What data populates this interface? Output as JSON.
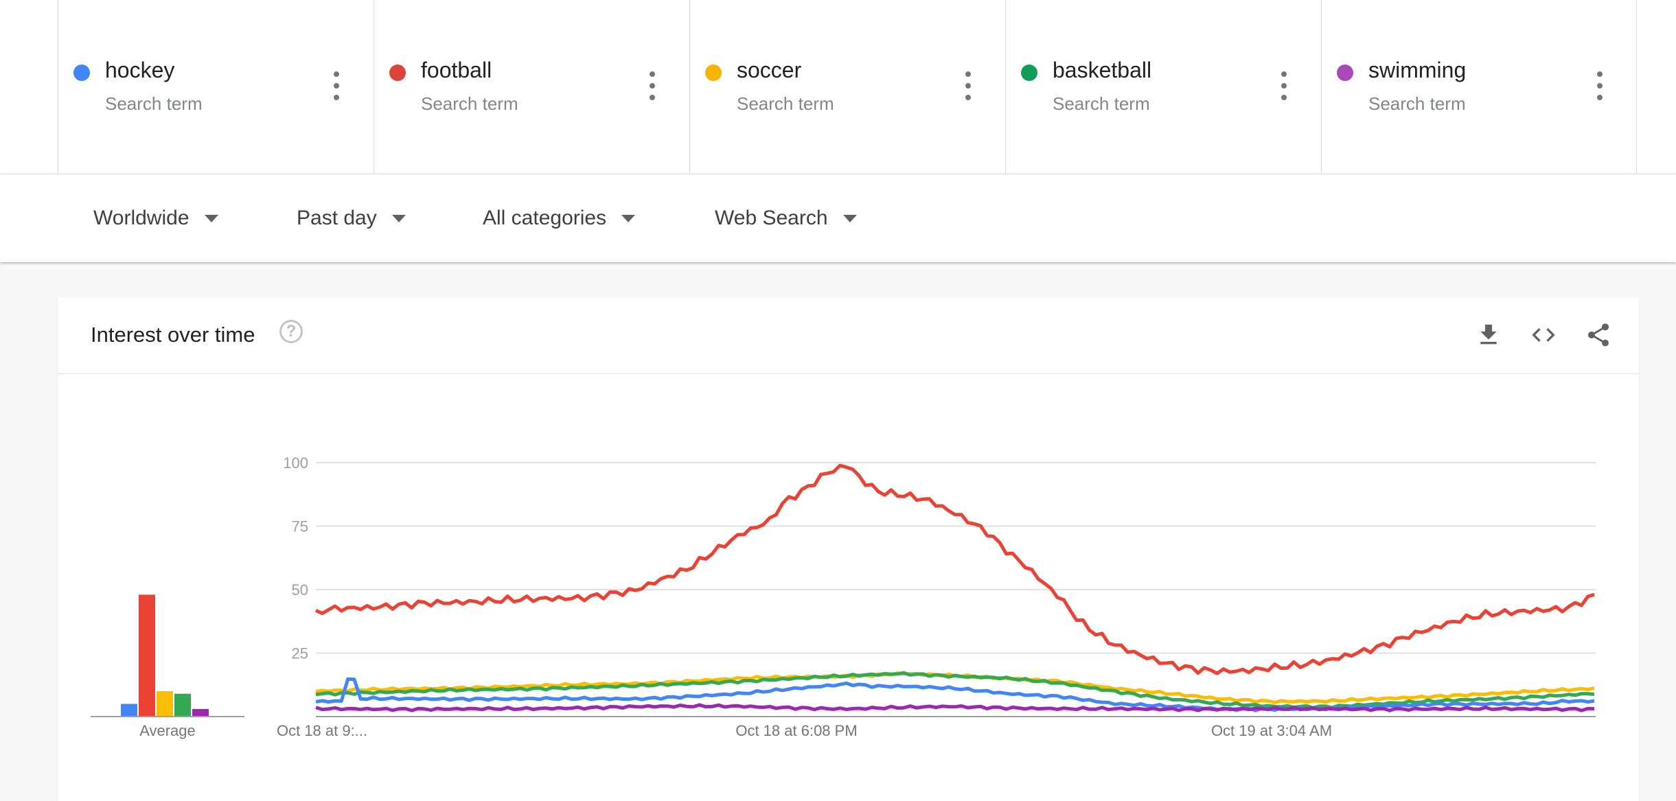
{
  "terms": [
    {
      "name": "hockey",
      "sub": "Search term",
      "color": "#4285f4"
    },
    {
      "name": "football",
      "sub": "Search term",
      "color": "#db4437"
    },
    {
      "name": "soccer",
      "sub": "Search term",
      "color": "#f4b400"
    },
    {
      "name": "basketball",
      "sub": "Search term",
      "color": "#0f9d58"
    },
    {
      "name": "swimming",
      "sub": "Search term",
      "color": "#ab47bc"
    }
  ],
  "filters": {
    "region": "Worldwide",
    "time": "Past day",
    "category": "All categories",
    "search_type": "Web Search"
  },
  "card": {
    "title": "Interest over time",
    "help_icon": "help-circle-icon",
    "actions": [
      "download-icon",
      "embed-code-icon",
      "share-icon"
    ]
  },
  "chart_data": {
    "type": "line",
    "ylim": [
      0,
      100
    ],
    "yticks": [
      25,
      50,
      75,
      100
    ],
    "xtick_labels": [
      "Oct 18 at 9:...",
      "Oct 18 at 6:08 PM",
      "Oct 19 at 3:04 AM"
    ],
    "average_label": "Average",
    "averages": {
      "hockey": 5,
      "football": 48,
      "soccer": 10,
      "basketball": 9,
      "swimming": 3
    },
    "points_count": 200,
    "series": [
      {
        "name": "football",
        "color": "#ea4335",
        "keypoints": [
          [
            0,
            40
          ],
          [
            2,
            42
          ],
          [
            10,
            43
          ],
          [
            20,
            45
          ],
          [
            30,
            45
          ],
          [
            40,
            46
          ],
          [
            50,
            47
          ],
          [
            60,
            50
          ],
          [
            65,
            54
          ],
          [
            70,
            58
          ],
          [
            75,
            65
          ],
          [
            80,
            72
          ],
          [
            85,
            77
          ],
          [
            88,
            85
          ],
          [
            92,
            90
          ],
          [
            95,
            95
          ],
          [
            98,
            98
          ],
          [
            100,
            99
          ],
          [
            103,
            92
          ],
          [
            106,
            88
          ],
          [
            110,
            87
          ],
          [
            115,
            85
          ],
          [
            118,
            82
          ],
          [
            122,
            78
          ],
          [
            126,
            73
          ],
          [
            130,
            65
          ],
          [
            133,
            60
          ],
          [
            136,
            54
          ],
          [
            140,
            46
          ],
          [
            143,
            38
          ],
          [
            146,
            33
          ],
          [
            150,
            28
          ],
          [
            155,
            24
          ],
          [
            160,
            21
          ],
          [
            165,
            19
          ],
          [
            170,
            18
          ],
          [
            175,
            18
          ],
          [
            180,
            19
          ],
          [
            185,
            20
          ],
          [
            190,
            22
          ],
          [
            195,
            25
          ],
          [
            200,
            28
          ],
          [
            205,
            32
          ],
          [
            210,
            35
          ],
          [
            215,
            38
          ],
          [
            220,
            40
          ],
          [
            225,
            41
          ],
          [
            230,
            42
          ],
          [
            235,
            43
          ],
          [
            238,
            46
          ],
          [
            240,
            48
          ]
        ]
      },
      {
        "name": "soccer",
        "color": "#fbbc04",
        "keypoints": [
          [
            0,
            10
          ],
          [
            20,
            11
          ],
          [
            40,
            12
          ],
          [
            60,
            13
          ],
          [
            80,
            15
          ],
          [
            100,
            16
          ],
          [
            110,
            17
          ],
          [
            120,
            16
          ],
          [
            130,
            15
          ],
          [
            140,
            14
          ],
          [
            150,
            11
          ],
          [
            160,
            9
          ],
          [
            170,
            7
          ],
          [
            180,
            6
          ],
          [
            190,
            6
          ],
          [
            200,
            7
          ],
          [
            210,
            8
          ],
          [
            220,
            9
          ],
          [
            230,
            10
          ],
          [
            240,
            11
          ]
        ]
      },
      {
        "name": "basketball",
        "color": "#34a853",
        "keypoints": [
          [
            0,
            9
          ],
          [
            20,
            10
          ],
          [
            40,
            11
          ],
          [
            60,
            12
          ],
          [
            80,
            14
          ],
          [
            100,
            16
          ],
          [
            110,
            17
          ],
          [
            120,
            16
          ],
          [
            130,
            15
          ],
          [
            140,
            13
          ],
          [
            150,
            10
          ],
          [
            160,
            7
          ],
          [
            170,
            5
          ],
          [
            180,
            4
          ],
          [
            190,
            4
          ],
          [
            200,
            5
          ],
          [
            210,
            6
          ],
          [
            220,
            7
          ],
          [
            230,
            8
          ],
          [
            240,
            9
          ]
        ]
      },
      {
        "name": "hockey",
        "color": "#4285f4",
        "keypoints": [
          [
            0,
            6
          ],
          [
            5,
            6
          ],
          [
            6,
            15
          ],
          [
            7,
            16
          ],
          [
            8,
            7
          ],
          [
            12,
            7
          ],
          [
            20,
            7
          ],
          [
            40,
            7
          ],
          [
            60,
            7
          ],
          [
            70,
            8
          ],
          [
            80,
            9
          ],
          [
            90,
            11
          ],
          [
            95,
            12
          ],
          [
            100,
            13
          ],
          [
            105,
            12
          ],
          [
            110,
            12
          ],
          [
            120,
            11
          ],
          [
            125,
            10
          ],
          [
            130,
            9
          ],
          [
            140,
            8
          ],
          [
            150,
            5
          ],
          [
            160,
            4
          ],
          [
            170,
            3
          ],
          [
            180,
            3
          ],
          [
            190,
            3
          ],
          [
            200,
            4
          ],
          [
            210,
            5
          ],
          [
            220,
            5
          ],
          [
            230,
            5
          ],
          [
            235,
            6
          ],
          [
            240,
            6
          ]
        ]
      },
      {
        "name": "swimming",
        "color": "#9c27b0",
        "keypoints": [
          [
            0,
            3
          ],
          [
            20,
            3
          ],
          [
            40,
            3
          ],
          [
            60,
            4
          ],
          [
            80,
            4
          ],
          [
            100,
            3
          ],
          [
            120,
            4
          ],
          [
            140,
            3
          ],
          [
            160,
            3
          ],
          [
            180,
            3
          ],
          [
            200,
            3
          ],
          [
            220,
            3
          ],
          [
            240,
            3
          ]
        ]
      }
    ]
  }
}
